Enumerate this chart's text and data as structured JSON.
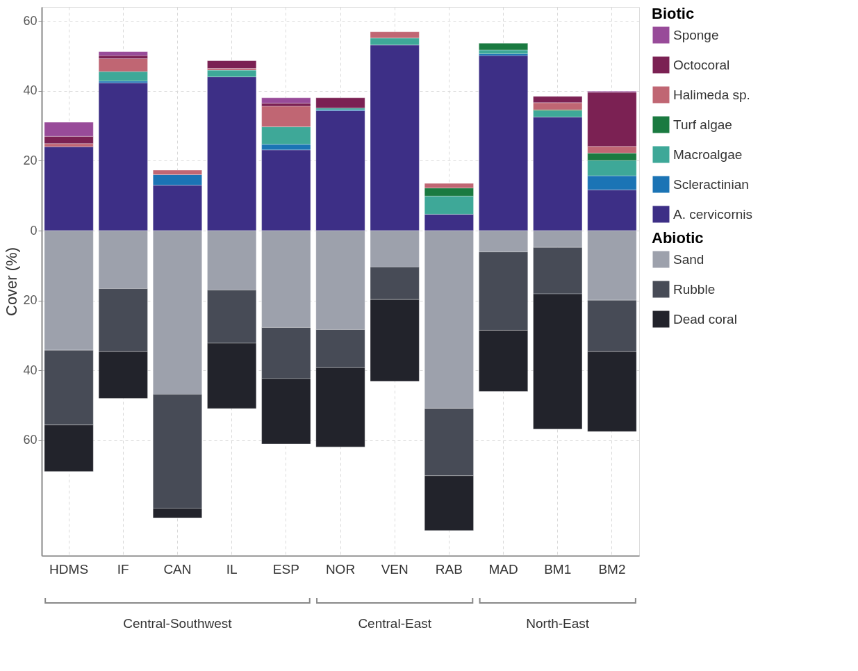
{
  "chart_data": {
    "type": "bar",
    "stacked": true,
    "ylabel": "Cover (%)",
    "legend_title": [
      "Biotic",
      "Abiotic"
    ],
    "categories": [
      "HDMS",
      "IF",
      "CAN",
      "IL",
      "ESP",
      "NOR",
      "VEN",
      "RAB",
      "MAD",
      "BM1",
      "BM2"
    ],
    "series": [
      {
        "name": "A. cervicornis",
        "color": "#3d2f86",
        "values": [
          24.0,
          42.3,
          13.0,
          44.0,
          23.1,
          34.3,
          53.1,
          4.7,
          50.1,
          32.5,
          11.7
        ]
      },
      {
        "name": "Scleractinian",
        "color": "#1b74b5",
        "values": [
          null,
          0.5,
          3.0,
          null,
          1.6,
          0.3,
          null,
          null,
          0.5,
          null,
          4.0
        ]
      },
      {
        "name": "Macroalgae",
        "color": "#3ea898",
        "values": [
          null,
          2.7,
          null,
          1.9,
          5.0,
          0.5,
          2.0,
          5.2,
          1.1,
          1.8,
          4.4
        ]
      },
      {
        "name": "Turf algae",
        "color": "#1a7a40",
        "values": [
          null,
          null,
          null,
          null,
          null,
          null,
          null,
          2.3,
          1.9,
          0.3,
          2.1
        ]
      },
      {
        "name": "Halimeda sp.",
        "color": "#c06673",
        "values": [
          0.9,
          3.7,
          1.3,
          0.5,
          5.9,
          null,
          1.8,
          1.3,
          null,
          2.0,
          1.9
        ]
      },
      {
        "name": "Octocoral",
        "color": "#7b2153",
        "values": [
          2.1,
          0.9,
          null,
          2.2,
          0.9,
          2.9,
          null,
          null,
          null,
          1.8,
          15.5
        ]
      },
      {
        "name": "Sponge",
        "color": "#984b99",
        "values": [
          4.0,
          1.1,
          null,
          null,
          1.5,
          null,
          null,
          null,
          null,
          null,
          0.3
        ]
      },
      {
        "name": "Sand",
        "color": "#9da1ac",
        "values": [
          -34.2,
          -16.6,
          -46.8,
          -17.0,
          -27.7,
          -28.3,
          -10.4,
          -50.9,
          -6.1,
          -4.8,
          -19.9
        ]
      },
      {
        "name": "Rubble",
        "color": "#474b56",
        "values": [
          -21.4,
          -18.0,
          -32.7,
          -15.2,
          -14.6,
          -10.9,
          -9.3,
          -19.2,
          -22.4,
          -13.3,
          -14.7
        ]
      },
      {
        "name": "Dead coral",
        "color": "#22232b",
        "values": [
          -13.3,
          -13.4,
          -2.7,
          -18.7,
          -18.7,
          -22.7,
          -23.4,
          -15.7,
          -17.5,
          -38.7,
          -22.9
        ]
      }
    ],
    "ylim": [
      -93,
      64
    ],
    "yticks": [
      {
        "value": -60,
        "label": "60"
      },
      {
        "value": -40,
        "label": "40"
      },
      {
        "value": -20,
        "label": "20"
      },
      0,
      20,
      40,
      60
    ],
    "grid": true,
    "legend": "top right",
    "annotations": [
      "Central-Southwest",
      "Central-East",
      "North-East"
    ]
  }
}
